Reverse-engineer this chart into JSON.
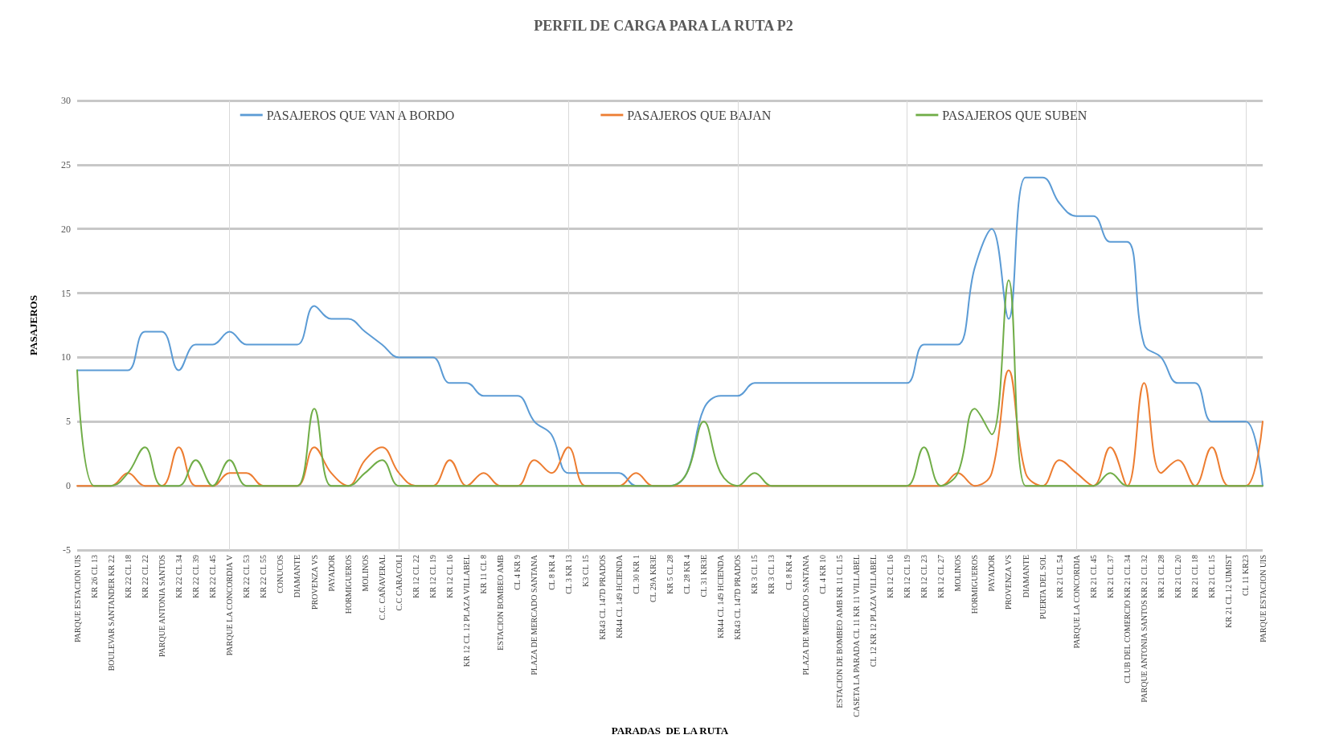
{
  "chart_data": {
    "type": "line",
    "title": "PERFIL DE CARGA PARA LA RUTA P2",
    "xlabel": "PARADAS  DE LA RUTA",
    "ylabel": "PASAJEROS",
    "categories": [
      "PARQUE ESTACION UIS",
      "KR 26 CL 13",
      "BOULEVAR SANTANDER KR 22",
      "KR 22 CL 18",
      "KR 22 CL 22",
      "PARQUE ANTONIA SANTOS",
      "KR 22 CL 34",
      "KR 22 CL 39",
      "KR 22 CL 45",
      "PARQUE LA CONCORDIA V",
      "KR 22 CL 53",
      "KR 22 CL 55",
      "CONUCOS",
      "DIAMANTE",
      "PROVENZA VS",
      "PAYADOR",
      "HORMIGUEROS",
      "MOLINOS",
      "C.C. CAÑAVERAL",
      "C.C CARACOLI",
      "KR 12 CL 22",
      "KR 12 CL 19",
      "KR 12 CL 16",
      "KR 12 CL 12 PLAZA VILLABEL",
      "KR 11 CL 8",
      "ESTACION BOMBEO AMB",
      "CL 4 KR 9",
      "PLAZA DE MERCADO SANTANA",
      "CL 8 KR 4",
      "CL 3 KR 13",
      "K3 CL 15",
      "KR43 CL 147D PRADOS",
      "KR44 CL 149 HCIENDA",
      "CL 30 KR 1",
      "CL 29A KR3E",
      "KR 5 CL 28",
      "CL 28 KR 4",
      "CL 31 KR3E",
      "KR44 CL 149 HCIENDA",
      "KR43 CL 147D PRADOS",
      "KR 3 CL 15",
      "KR 3 CL 13",
      "CL 8 KR 4",
      "PLAZA DE MERCADO SANTANA",
      "CL 4 KR 10",
      "ESTACION DE BOMBEO AMB KR 11 CL 15",
      "CASETA LA PARADA CL 11 KR 11 VILLABEL",
      "CL 12 KR 12 PLAZA VILLABEL",
      "KR 12 CL 16",
      "KR 12 CL 19",
      "KR 12 CL 23",
      "KR 12 CL 27",
      "MOLINOS",
      "HORMIGUEROS",
      "PAYADOR",
      "PROVENZA VS",
      "DIAMANTE",
      "PUERTA DEL SOL",
      "KR 21 CL 54",
      "PARQUE LA CONCORDIA",
      "KR 21 CL 45",
      "KR 21 CL 37",
      "CLUB DEL COMERCIO KR 21 CL 34",
      "PARQUE ANTONIA SANTOS KR 21 CL 32",
      "KR 21 CL 28",
      "KR 21 CL 20",
      "KR 21 CL 18",
      "KR 21 CL 15",
      "KR 21 CL 12 UIMIST",
      "CL 11 KR23",
      "PARQUE ESTACION UIS"
    ],
    "series": [
      {
        "name": "PASAJEROS QUE VAN A BORDO",
        "color": "#5b9bd5",
        "values": [
          9,
          9,
          9,
          9,
          12,
          12,
          9,
          11,
          11,
          12,
          11,
          11,
          11,
          11,
          14,
          13,
          13,
          12,
          11,
          10,
          10,
          10,
          8,
          8,
          7,
          7,
          7,
          5,
          4,
          1,
          1,
          1,
          1,
          0,
          0,
          0,
          1,
          6,
          7,
          7,
          8,
          8,
          8,
          8,
          8,
          8,
          8,
          8,
          8,
          8,
          11,
          11,
          11,
          17,
          20,
          13,
          24,
          24,
          22,
          21,
          21,
          19,
          19,
          11,
          10,
          8,
          8,
          5,
          5,
          5,
          0
        ]
      },
      {
        "name": "PASAJEROS QUE BAJAN",
        "color": "#ed7d31",
        "values": [
          0,
          0,
          0,
          1,
          0,
          0,
          3,
          0,
          0,
          1,
          1,
          0,
          0,
          0,
          3,
          1,
          0,
          2,
          3,
          1,
          0,
          0,
          2,
          0,
          1,
          0,
          0,
          2,
          1,
          3,
          0,
          0,
          0,
          1,
          0,
          0,
          0,
          0,
          0,
          0,
          0,
          0,
          0,
          0,
          0,
          0,
          0,
          0,
          0,
          0,
          0,
          0,
          1,
          0,
          1,
          9,
          1,
          0,
          2,
          1,
          0,
          3,
          0,
          8,
          1,
          2,
          0,
          3,
          0,
          0,
          5
        ]
      },
      {
        "name": "PASAJEROS QUE SUBEN",
        "color": "#70ad47",
        "values": [
          9,
          0,
          0,
          1,
          3,
          0,
          0,
          2,
          0,
          2,
          0,
          0,
          0,
          0,
          6,
          0,
          0,
          1,
          2,
          0,
          0,
          0,
          0,
          0,
          0,
          0,
          0,
          0,
          0,
          0,
          0,
          0,
          0,
          0,
          0,
          0,
          1,
          5,
          1,
          0,
          1,
          0,
          0,
          0,
          0,
          0,
          0,
          0,
          0,
          0,
          3,
          0,
          1,
          6,
          4,
          16,
          0,
          0,
          0,
          0,
          0,
          1,
          0,
          0,
          0,
          0,
          0,
          0,
          0,
          0,
          0
        ]
      }
    ],
    "ylim": [
      -5,
      30
    ],
    "yticks": [
      -5,
      0,
      5,
      10,
      15,
      20,
      25,
      30
    ],
    "grid": true,
    "legend": "top",
    "marker": "none",
    "line_style": "solid"
  }
}
